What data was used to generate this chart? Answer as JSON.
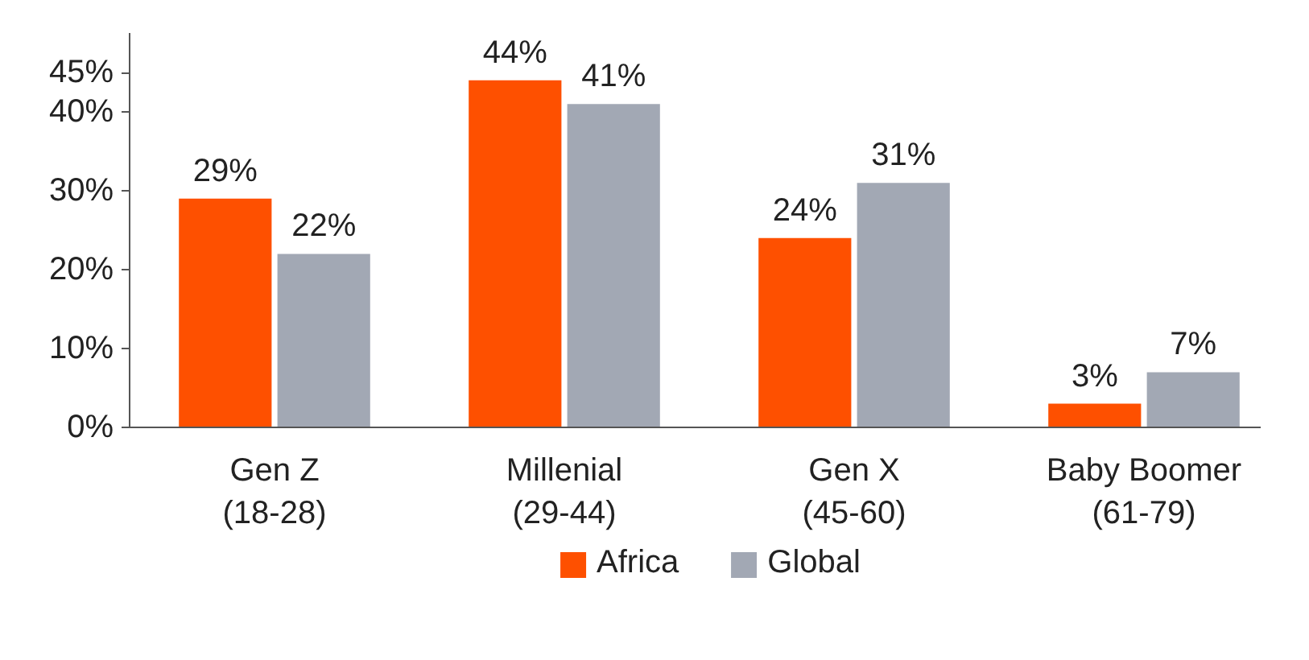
{
  "chart_data": {
    "type": "bar",
    "categories": [
      "Gen Z\n(18-28)",
      "Millenial\n(29-44)",
      "Gen X\n(45-60)",
      "Baby Boomer\n(61-79)"
    ],
    "series": [
      {
        "name": "Africa",
        "color": "#fe5000",
        "values": [
          29,
          44,
          24,
          3
        ],
        "value_labels": [
          "29%",
          "44%",
          "24%",
          "3%"
        ]
      },
      {
        "name": "Global",
        "color": "#a2a8b4",
        "values": [
          22,
          41,
          31,
          7
        ],
        "value_labels": [
          "22%",
          "41%",
          "31%",
          "7%"
        ]
      }
    ],
    "ylim": [
      0,
      50
    ],
    "yticks": [
      {
        "value": 0,
        "label": "0%"
      },
      {
        "value": 10,
        "label": "10%"
      },
      {
        "value": 20,
        "label": "20%"
      },
      {
        "value": 30,
        "label": "30%"
      },
      {
        "value": 40,
        "label": "40%"
      },
      {
        "value": 45,
        "label": "45%"
      }
    ],
    "grid": false,
    "legend": "bottom"
  }
}
